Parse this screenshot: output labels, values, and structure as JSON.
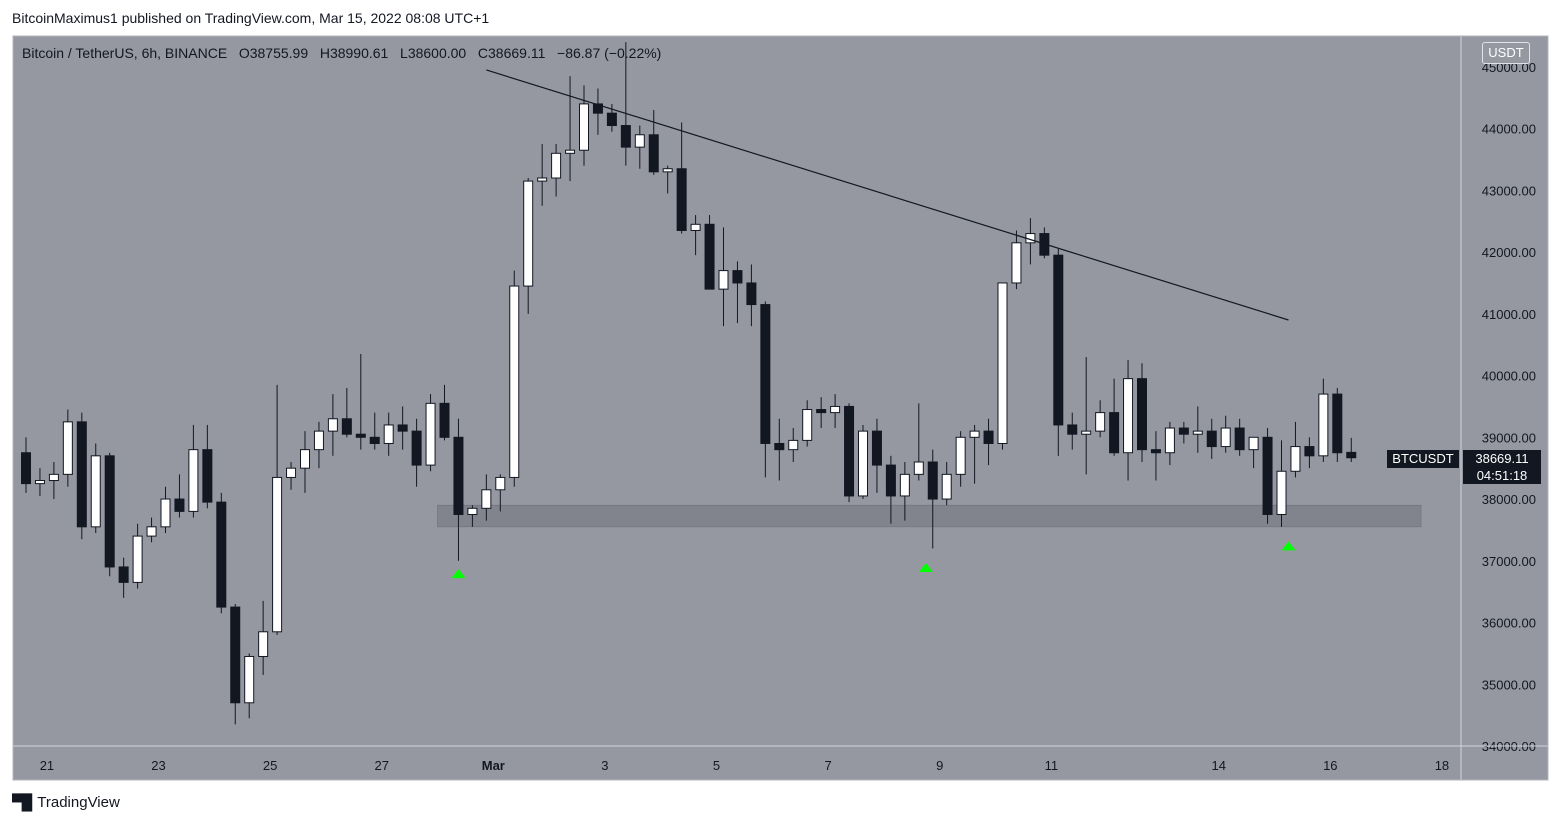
{
  "header": {
    "publisher_line": "BitcoinMaximus1 published on TradingView.com, Mar 15, 2022 08:08 UTC+1"
  },
  "legend": {
    "symbol": "Bitcoin / TetherUS, 6h, BINANCE",
    "o_label": "O",
    "o_value": "38755.99",
    "h_label": "H",
    "h_value": "38990.61",
    "l_label": "L",
    "l_value": "38600.00",
    "c_label": "C",
    "c_value": "38669.11",
    "change": "−86.87 (−0.22%)"
  },
  "price_axis": {
    "currency": "USDT"
  },
  "last_price": {
    "symbol": "BTCUSDT",
    "price": "38669.11",
    "countdown": "04:51:18"
  },
  "footer": {
    "brand": "TradingView"
  },
  "colors": {
    "background": "#9598a1",
    "bull_body": "#ffffff",
    "bear_body": "#131722",
    "support_zone": "#7e8089",
    "marker": "#00ff00",
    "trendline": "#131722"
  },
  "chart_data": {
    "type": "candlestick",
    "timeframe": "6h",
    "ylim": [
      34000,
      45500
    ],
    "y_ticks": [
      34000,
      35000,
      36000,
      37000,
      38000,
      39000,
      40000,
      41000,
      42000,
      43000,
      44000,
      45000
    ],
    "x_ticks": [
      {
        "label": "21",
        "idx": 1.5
      },
      {
        "label": "23",
        "idx": 9.5
      },
      {
        "label": "25",
        "idx": 17.5
      },
      {
        "label": "27",
        "idx": 25.5
      },
      {
        "label": "Mar",
        "idx": 33.5
      },
      {
        "label": "3",
        "idx": 41.5
      },
      {
        "label": "5",
        "idx": 49.5
      },
      {
        "label": "7",
        "idx": 57.5
      },
      {
        "label": "9",
        "idx": 65.5
      },
      {
        "label": "11",
        "idx": 73.5
      },
      {
        "label": "14",
        "idx": 85.5
      },
      {
        "label": "16",
        "idx": 93.5
      },
      {
        "label": "18",
        "idx": 101.5
      }
    ],
    "candles": [
      [
        38750,
        39000,
        38100,
        38250
      ],
      [
        38250,
        38500,
        38050,
        38300
      ],
      [
        38300,
        38600,
        38000,
        38400
      ],
      [
        38400,
        39450,
        38200,
        39250
      ],
      [
        39250,
        39400,
        37350,
        37550
      ],
      [
        37550,
        38900,
        37450,
        38700
      ],
      [
        38700,
        38750,
        36750,
        36900
      ],
      [
        36900,
        37050,
        36400,
        36650
      ],
      [
        36650,
        37600,
        36550,
        37400
      ],
      [
        37400,
        37700,
        37300,
        37550
      ],
      [
        37550,
        38200,
        37450,
        38000
      ],
      [
        38000,
        38400,
        37700,
        37800
      ],
      [
        37800,
        39200,
        37700,
        38800
      ],
      [
        38800,
        39200,
        37850,
        37950
      ],
      [
        37950,
        38100,
        36150,
        36250
      ],
      [
        36250,
        36300,
        34350,
        34700
      ],
      [
        34700,
        35500,
        34450,
        35450
      ],
      [
        35450,
        36350,
        35150,
        35850
      ],
      [
        35850,
        39850,
        35800,
        38350
      ],
      [
        38350,
        38600,
        38150,
        38500
      ],
      [
        38500,
        39100,
        38100,
        38800
      ],
      [
        38800,
        39250,
        38500,
        39100
      ],
      [
        39100,
        39700,
        38700,
        39300
      ],
      [
        39300,
        39800,
        39000,
        39050
      ],
      [
        39050,
        40350,
        38800,
        39000
      ],
      [
        39000,
        39400,
        38800,
        38900
      ],
      [
        38900,
        39400,
        38700,
        39200
      ],
      [
        39200,
        39500,
        38800,
        39100
      ],
      [
        39100,
        39300,
        38200,
        38550
      ],
      [
        38550,
        39700,
        38450,
        39550
      ],
      [
        39550,
        39850,
        38950,
        39000
      ],
      [
        39000,
        39300,
        37000,
        37750
      ],
      [
        37750,
        37900,
        37550,
        37850
      ],
      [
        37850,
        38400,
        37650,
        38150
      ],
      [
        38150,
        38400,
        37800,
        38350
      ],
      [
        38350,
        41700,
        38200,
        41450
      ],
      [
        41450,
        43200,
        41000,
        43150
      ],
      [
        43150,
        43750,
        42750,
        43200
      ],
      [
        43200,
        43750,
        42900,
        43600
      ],
      [
        43600,
        44850,
        43150,
        43650
      ],
      [
        43650,
        44700,
        43400,
        44400
      ],
      [
        44400,
        44650,
        43900,
        44250
      ],
      [
        44250,
        44400,
        43950,
        44050
      ],
      [
        44050,
        45400,
        43400,
        43700
      ],
      [
        43700,
        44050,
        43350,
        43900
      ],
      [
        43900,
        44300,
        43250,
        43300
      ],
      [
        43300,
        43400,
        42950,
        43350
      ],
      [
        43350,
        44100,
        42300,
        42350
      ],
      [
        42350,
        42600,
        41950,
        42450
      ],
      [
        42450,
        42600,
        41500,
        41400
      ],
      [
        41400,
        42400,
        40800,
        41700
      ],
      [
        41700,
        41850,
        40850,
        41500
      ],
      [
        41500,
        41800,
        40800,
        41150
      ],
      [
        41150,
        41200,
        38350,
        38900
      ],
      [
        38900,
        39300,
        38300,
        38800
      ],
      [
        38800,
        39150,
        38600,
        38950
      ],
      [
        38950,
        39600,
        38850,
        39450
      ],
      [
        39450,
        39650,
        39150,
        39400
      ],
      [
        39400,
        39700,
        39150,
        39500
      ],
      [
        39500,
        39550,
        37950,
        38050
      ],
      [
        38050,
        39200,
        38000,
        39100
      ],
      [
        39100,
        39300,
        38100,
        38550
      ],
      [
        38550,
        38700,
        37600,
        38050
      ],
      [
        38050,
        38600,
        37650,
        38400
      ],
      [
        38400,
        39550,
        38300,
        38600
      ],
      [
        38600,
        38800,
        37200,
        38000
      ],
      [
        38000,
        38600,
        37900,
        38400
      ],
      [
        38400,
        39100,
        38200,
        39000
      ],
      [
        39000,
        39200,
        38250,
        39100
      ],
      [
        39100,
        39300,
        38550,
        38900
      ],
      [
        38900,
        41500,
        38800,
        41500
      ],
      [
        41500,
        42350,
        41400,
        42150
      ],
      [
        42150,
        42550,
        41800,
        42300
      ],
      [
        42300,
        42400,
        41900,
        41950
      ],
      [
        41950,
        42050,
        38700,
        39200
      ],
      [
        39200,
        39400,
        38800,
        39050
      ],
      [
        39050,
        40300,
        38400,
        39100
      ],
      [
        39100,
        39600,
        39000,
        39400
      ],
      [
        39400,
        39950,
        38700,
        38750
      ],
      [
        38750,
        40250,
        38300,
        39950
      ],
      [
        39950,
        40200,
        38600,
        38800
      ],
      [
        38800,
        39100,
        38300,
        38750
      ],
      [
        38750,
        39250,
        38550,
        39150
      ],
      [
        39150,
        39250,
        38900,
        39050
      ],
      [
        39050,
        39500,
        38750,
        39100
      ],
      [
        39100,
        39300,
        38650,
        38850
      ],
      [
        38850,
        39350,
        38750,
        39150
      ],
      [
        39150,
        39300,
        38700,
        38800
      ],
      [
        38800,
        39000,
        38500,
        39000
      ],
      [
        39000,
        39150,
        37600,
        37750
      ],
      [
        37750,
        38950,
        37550,
        38450
      ],
      [
        38450,
        39250,
        38350,
        38850
      ],
      [
        38850,
        39000,
        38500,
        38700
      ],
      [
        38700,
        39950,
        38600,
        39700
      ],
      [
        39700,
        39800,
        38600,
        38750
      ],
      [
        38755.99,
        38990.61,
        38600.0,
        38669.11
      ]
    ],
    "trendline": {
      "from": {
        "idx": 33,
        "price": 44950
      },
      "to": {
        "idx": 90.5,
        "price": 40900
      }
    },
    "support_zone": {
      "from_idx": 29.5,
      "to_idx": 100,
      "low": 37550,
      "high": 37900
    },
    "markers": [
      {
        "idx": 31,
        "price": 36800,
        "shape": "triangle-up"
      },
      {
        "idx": 64.5,
        "price": 36900,
        "shape": "triangle-up"
      },
      {
        "idx": 90.5,
        "price": 37250,
        "shape": "triangle-up"
      }
    ]
  }
}
